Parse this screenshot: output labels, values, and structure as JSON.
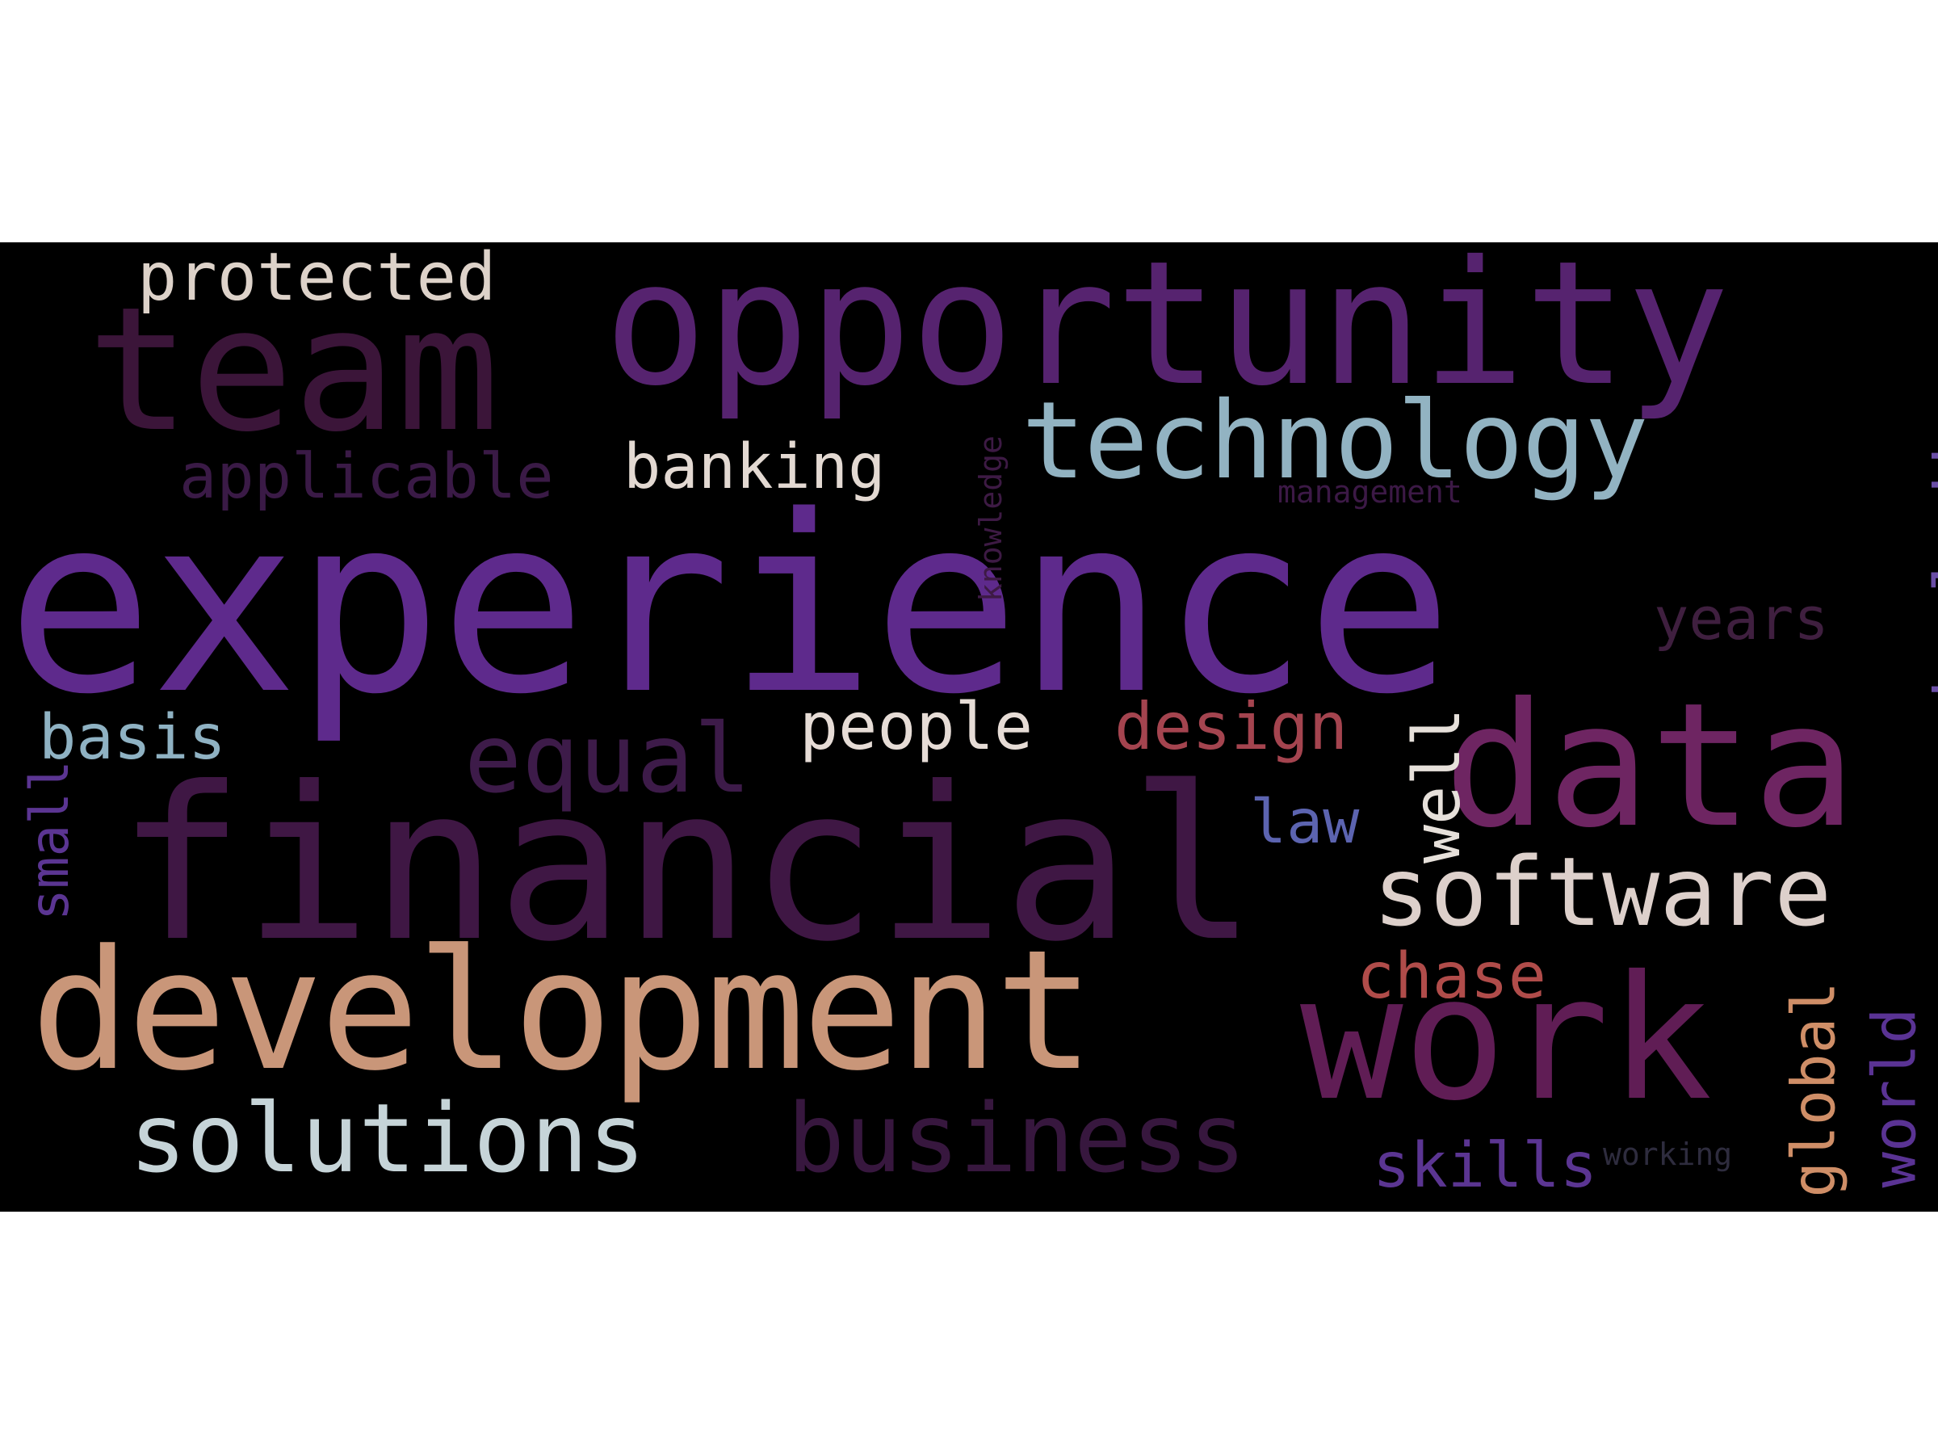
{
  "colors": {
    "background": "#ffffff",
    "panel": "#000000"
  },
  "words": {
    "experience": {
      "text": "experience",
      "color": "#5e2a8c"
    },
    "financial": {
      "text": "financial",
      "color": "#3f1744"
    },
    "development": {
      "text": "development",
      "color": "#c99679"
    },
    "opportunity": {
      "text": "opportunity",
      "color": "#56236f"
    },
    "team": {
      "text": "team",
      "color": "#3b1539"
    },
    "data": {
      "text": "data",
      "color": "#6e2562"
    },
    "work": {
      "text": "work",
      "color": "#601d55"
    },
    "technology": {
      "text": "technology",
      "color": "#92b3c2"
    },
    "software": {
      "text": "software",
      "color": "#ddd0cb"
    },
    "solutions": {
      "text": "solutions",
      "color": "#c6d4d8"
    },
    "business": {
      "text": "business",
      "color": "#37173e"
    },
    "equal": {
      "text": "equal",
      "color": "#3d1b49"
    },
    "protected": {
      "text": "protected",
      "color": "#ddd2c9"
    },
    "banking": {
      "text": "banking",
      "color": "#e3d9d2"
    },
    "applicable": {
      "text": "applicable",
      "color": "#3a1a46"
    },
    "people": {
      "text": "people",
      "color": "#e6dcd6"
    },
    "design": {
      "text": "design",
      "color": "#a4444f"
    },
    "basis": {
      "text": "basis",
      "color": "#8fb2c3"
    },
    "law": {
      "text": "law",
      "color": "#5c64b0"
    },
    "chase": {
      "text": "chase",
      "color": "#b04c4a"
    },
    "skills": {
      "text": "skills",
      "color": "#5b3592"
    },
    "years": {
      "text": "years",
      "color": "#3f1f3f"
    },
    "management": {
      "text": "management",
      "color": "#3c1946"
    },
    "working": {
      "text": "working",
      "color": "#2e2c3e"
    },
    "knowledge": {
      "text": "knowledge",
      "color": "#3d1a44"
    },
    "including": {
      "text": "including",
      "color": "#6a4ea6"
    },
    "small": {
      "text": "small",
      "color": "#5b3592"
    },
    "well": {
      "text": "well",
      "color": "#e6e0da"
    },
    "global": {
      "text": "global",
      "color": "#cf8e67"
    },
    "world": {
      "text": "world",
      "color": "#5a3394"
    }
  }
}
